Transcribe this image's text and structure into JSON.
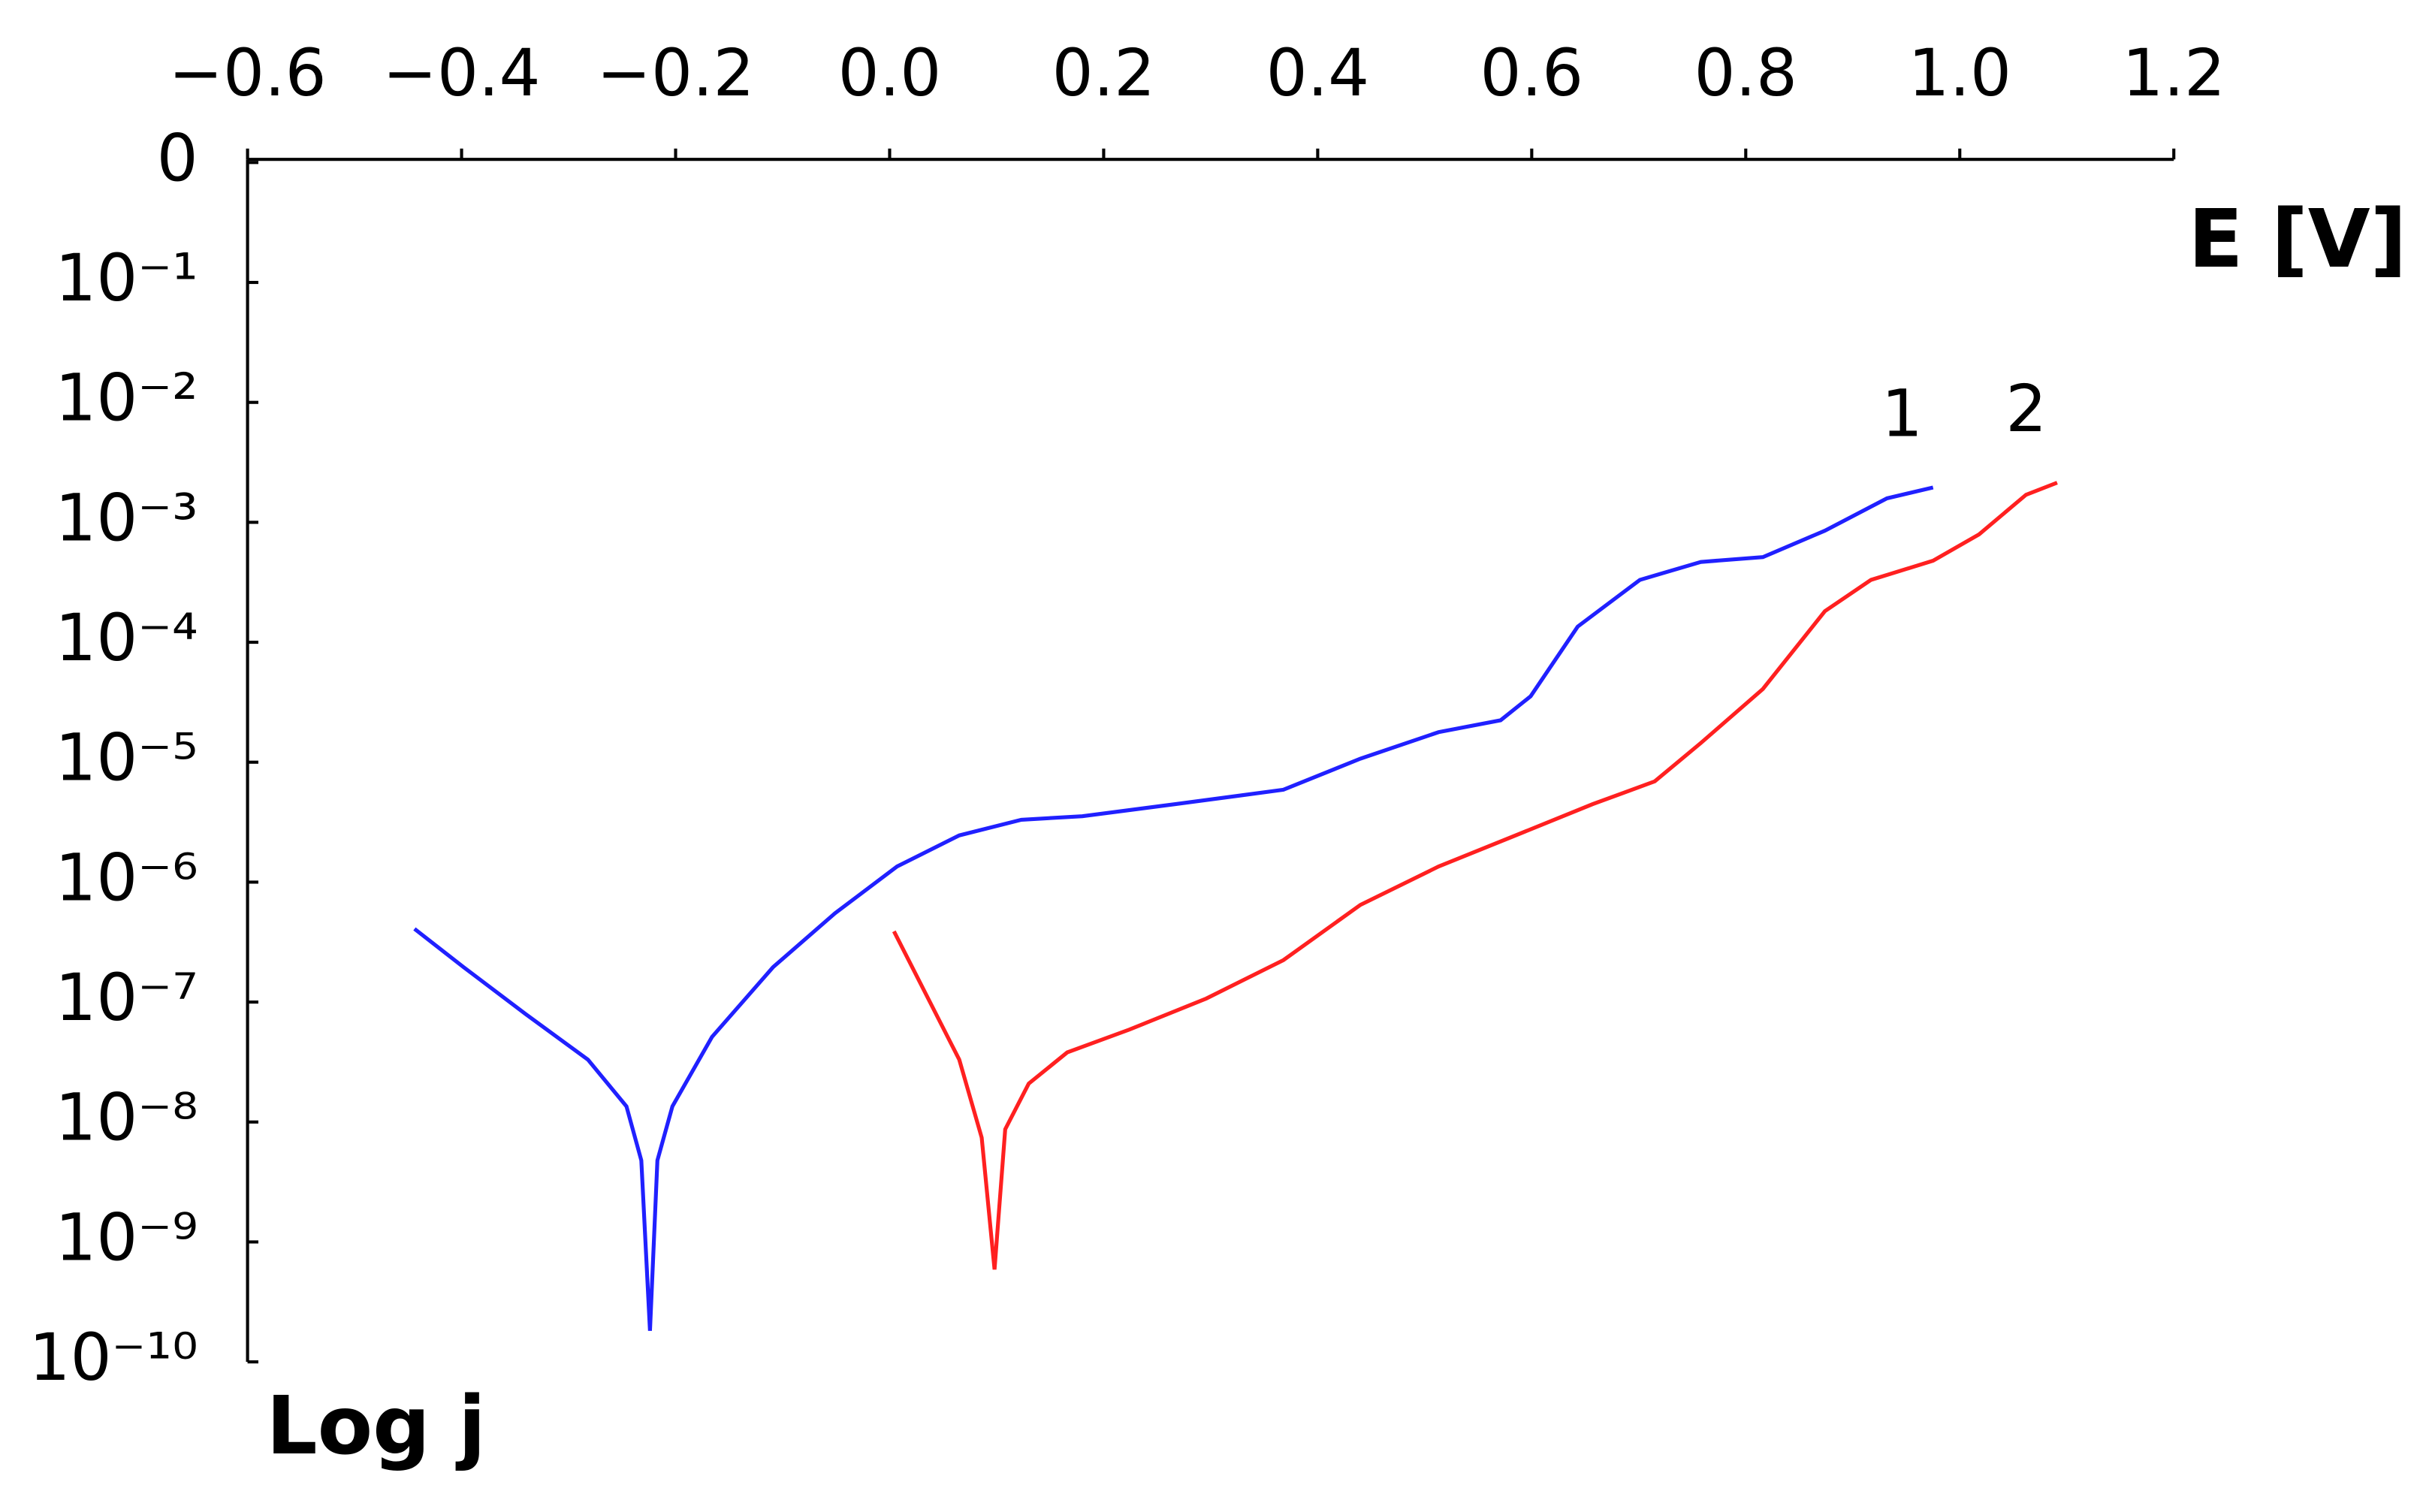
{
  "chart_data": {
    "type": "line",
    "xlabel": "E [V]",
    "ylabel": "Log j",
    "xlim": [
      -0.6,
      1.2
    ],
    "xticks": [
      {
        "value": -0.6,
        "label": "−0.6"
      },
      {
        "value": -0.4,
        "label": "−0.4"
      },
      {
        "value": -0.2,
        "label": "−0.2"
      },
      {
        "value": 0,
        "label": "0.0"
      },
      0.2,
      0.4,
      0.6,
      0.8,
      {
        "value": 1,
        "label": "1.0"
      },
      1.2
    ],
    "ylim": [
      -10,
      0
    ],
    "yticks": [
      0,
      {
        "value": -1,
        "label": "10⁻¹"
      },
      {
        "value": -2,
        "label": "10⁻²"
      },
      {
        "value": -3,
        "label": "10⁻³"
      },
      {
        "value": -4,
        "label": "10⁻⁴"
      },
      {
        "value": -5,
        "label": "10⁻⁵"
      },
      {
        "value": -6,
        "label": "10⁻⁶"
      },
      {
        "value": -7,
        "label": "10⁻⁷"
      },
      {
        "value": -8,
        "label": "10⁻⁸"
      },
      {
        "value": -9,
        "label": "10⁻⁹"
      },
      {
        "value": -10,
        "label": "10⁻¹⁰"
      }
    ],
    "series": [
      {
        "name": "1",
        "color": "#2020ff",
        "x": [
          -0.444,
          -0.398,
          -0.34,
          -0.282,
          -0.246,
          -0.232,
          -0.224,
          -0.217,
          -0.203,
          -0.166,
          -0.109,
          -0.051,
          0.007,
          0.065,
          0.123,
          0.18,
          0.267,
          0.368,
          0.44,
          0.513,
          0.571,
          0.599,
          0.643,
          0.701,
          0.758,
          0.816,
          0.874,
          0.932,
          0.975
        ],
        "values": [
          -6.39,
          -6.71,
          -7.1,
          -7.48,
          -7.87,
          -8.32,
          -9.74,
          -8.32,
          -7.87,
          -7.29,
          -6.71,
          -6.26,
          -5.87,
          -5.61,
          -5.48,
          -5.45,
          -5.35,
          -5.23,
          -4.97,
          -4.75,
          -4.65,
          -4.45,
          -3.87,
          -3.48,
          -3.33,
          -3.29,
          -3.07,
          -2.8,
          -2.71
        ]
      },
      {
        "name": "2",
        "color": "#ff2020",
        "x": [
          0.004,
          0.036,
          0.065,
          0.086,
          0.098,
          0.108,
          0.13,
          0.166,
          0.224,
          0.296,
          0.368,
          0.44,
          0.513,
          0.585,
          0.657,
          0.715,
          0.758,
          0.816,
          0.874,
          0.917,
          0.975,
          1.018,
          1.062,
          1.091
        ],
        "values": [
          -6.41,
          -6.97,
          -7.48,
          -8.13,
          -9.23,
          -8.06,
          -7.68,
          -7.42,
          -7.23,
          -6.97,
          -6.65,
          -6.19,
          -5.87,
          -5.61,
          -5.35,
          -5.16,
          -4.84,
          -4.39,
          -3.74,
          -3.48,
          -3.32,
          -3.1,
          -2.77,
          -2.67
        ]
      }
    ]
  }
}
